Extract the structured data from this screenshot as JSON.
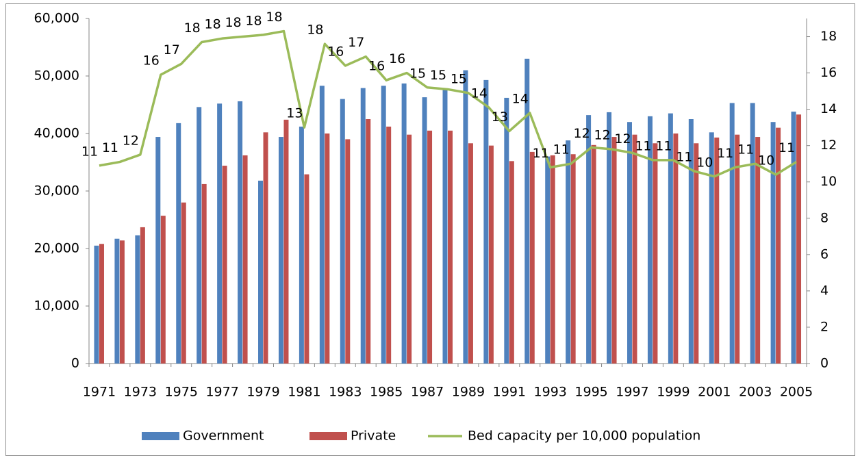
{
  "chart_data": {
    "type": "bar-line",
    "categories": [
      "1971",
      null,
      "1973",
      null,
      "1975",
      null,
      "1977",
      null,
      "1979",
      null,
      "1981",
      null,
      "1983",
      null,
      "1985",
      null,
      "1987",
      null,
      "1989",
      null,
      "1991",
      null,
      "1993",
      null,
      "1995",
      null,
      "1997",
      null,
      "1999",
      null,
      "2001",
      null,
      "2003",
      null,
      "2005"
    ],
    "series": [
      {
        "name": "Government",
        "type": "bar",
        "color": "#4f81bd",
        "values": [
          20500,
          21700,
          22300,
          39400,
          41800,
          44600,
          45200,
          45600,
          31800,
          39400,
          41200,
          48300,
          46000,
          47900,
          48300,
          48700,
          46300,
          47800,
          51000,
          49300,
          46200,
          53000,
          36000,
          38800,
          43200,
          43700,
          42000,
          43000,
          43500,
          42500,
          40200,
          45300,
          45300,
          42000,
          43800
        ]
      },
      {
        "name": "Private",
        "type": "bar",
        "color": "#c0504d",
        "values": [
          20800,
          21400,
          23700,
          25700,
          28000,
          31200,
          34400,
          36200,
          40200,
          42400,
          32900,
          40000,
          39000,
          42500,
          41200,
          39800,
          40500,
          40500,
          38300,
          37900,
          35200,
          36800,
          36200,
          36400,
          38000,
          39400,
          39800,
          38300,
          40000,
          38300,
          39300,
          39800,
          39400,
          41000,
          43300
        ]
      },
      {
        "name": "Bed capacity per 10,000 population",
        "type": "line",
        "axis": "y2",
        "color": "#9bbb59",
        "values": [
          10.9,
          11.1,
          11.5,
          15.9,
          16.5,
          17.7,
          17.9,
          18.0,
          18.1,
          18.3,
          13.0,
          17.6,
          16.4,
          16.9,
          15.6,
          16.0,
          15.2,
          15.1,
          14.9,
          14.1,
          12.8,
          13.8,
          10.8,
          11.0,
          11.9,
          11.8,
          11.6,
          11.2,
          11.2,
          10.6,
          10.3,
          10.8,
          11.0,
          10.4,
          11.1
        ],
        "value_labels": [
          "11",
          "11",
          "12",
          "16",
          "17",
          "18",
          "18",
          "18",
          "18",
          "18",
          "13",
          "18",
          "16",
          "17",
          "16",
          "16",
          "15",
          "15",
          "15",
          "14",
          "13",
          "14",
          "11",
          "11",
          "12",
          "12",
          "12",
          "11",
          "11",
          "11",
          "10",
          "11",
          "11",
          "10",
          "11"
        ]
      }
    ],
    "ylim": [
      0,
      60000
    ],
    "yticks": [
      0,
      {
        "value": 10000,
        "label": "10,000"
      },
      {
        "value": 20000,
        "label": "20,000"
      },
      {
        "value": 30000,
        "label": "30,000"
      },
      {
        "value": 40000,
        "label": "40,000"
      },
      {
        "value": 50000,
        "label": "50,000"
      },
      {
        "value": 60000,
        "label": "60,000"
      }
    ],
    "y2lim": [
      0,
      19
    ],
    "y2ticks": [
      0,
      2,
      4,
      6,
      8,
      10,
      12,
      14,
      16,
      18
    ],
    "legend": "bottom"
  }
}
